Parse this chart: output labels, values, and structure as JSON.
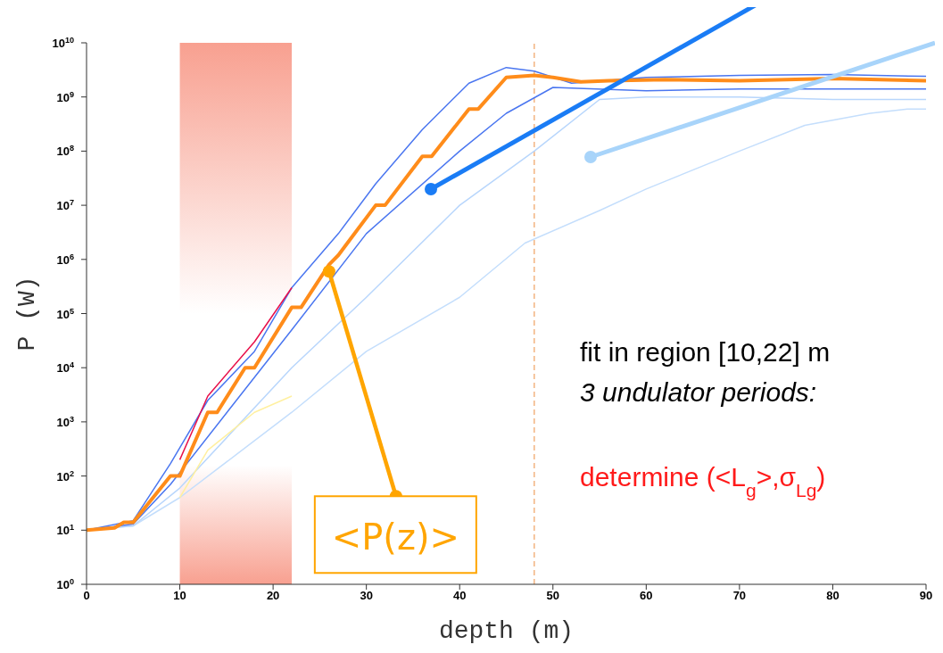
{
  "chart_data": {
    "type": "line",
    "xlabel": "depth (m)",
    "ylabel": "P (W)",
    "xlim": [
      0,
      90
    ],
    "xticks": [
      0,
      10,
      20,
      30,
      40,
      50,
      60,
      70,
      80,
      90
    ],
    "ylim": [
      1,
      10000000000
    ],
    "log": true,
    "yticks": [
      {
        "value": 1,
        "label": "10$^{0}$"
      },
      {
        "value": 10,
        "label": "10$^{1}$"
      },
      {
        "value": 100,
        "label": "10$^{2}$"
      },
      {
        "value": 1000,
        "label": "10$^{3}$"
      },
      {
        "value": 10000,
        "label": "10$^{4}$"
      },
      {
        "value": 100000,
        "label": "10$^{5}$"
      },
      {
        "value": 1000000,
        "label": "10$^{6}$"
      },
      {
        "value": 10000000,
        "label": "10$^{7}$"
      },
      {
        "value": 100000000,
        "label": "10$^{8}$"
      },
      {
        "value": 1000000000,
        "label": "10$^{9}$"
      },
      {
        "value": 10000000000,
        "label": "10$^{10}$"
      }
    ],
    "marker": "none",
    "line_style": "solid",
    "series": [
      {
        "color": "#c4defc",
        "x": [
          0,
          5,
          10,
          22,
          30,
          40,
          47,
          55,
          60,
          70,
          77,
          84,
          88,
          90
        ],
        "values": [
          10,
          12,
          40,
          1500,
          20000,
          200000,
          2000000,
          8000000,
          20000000,
          100000000,
          300000000,
          500000000,
          600000000,
          600000000
        ]
      },
      {
        "color": "#b8d6fc",
        "x": [
          0,
          5,
          10,
          22,
          30,
          40,
          48,
          55,
          60,
          70,
          80,
          90
        ],
        "values": [
          10,
          12,
          60,
          10000,
          200000,
          10000000,
          100000000,
          900000000,
          1000000000,
          1000000000,
          900000000,
          900000000
        ]
      },
      {
        "color": "#4a76f0",
        "x": [
          0,
          5,
          9,
          22,
          30,
          40,
          45,
          50,
          60,
          70,
          80,
          90
        ],
        "values": [
          10,
          13,
          70,
          50000,
          3000000,
          100000000,
          500000000,
          1500000000,
          1300000000,
          1400000000,
          1400000000,
          1400000000
        ]
      },
      {
        "color": "#4a76f0",
        "x": [
          0,
          5,
          9,
          13,
          18,
          22,
          27,
          31,
          36,
          41,
          45,
          48,
          52,
          60,
          70,
          80,
          90
        ],
        "values": [
          10,
          15,
          170,
          2500,
          20000,
          300000,
          3000000,
          25000000,
          250000000,
          1800000000,
          3500000000,
          3000000000,
          1800000000,
          2300000000,
          2500000000,
          2600000000,
          2400000000
        ]
      },
      {
        "color": "#fff0a0",
        "x": [
          10,
          13,
          18,
          22
        ],
        "values": [
          40,
          300,
          1500,
          3000
        ]
      },
      {
        "color": "#e8104a",
        "x": [
          10,
          13,
          18,
          22
        ],
        "values": [
          200,
          3000,
          30000,
          300000
        ]
      },
      {
        "color": "#ff8c1a",
        "x": [
          0,
          3,
          4,
          5,
          9,
          10,
          13,
          14,
          17,
          18,
          22,
          23,
          26,
          27,
          31,
          32,
          36,
          37,
          41,
          42,
          45,
          48,
          50,
          53,
          56,
          62,
          70,
          80,
          90
        ],
        "values": [
          10,
          11,
          14,
          14,
          100,
          100,
          1500,
          1500,
          10000,
          10000,
          130000,
          130000,
          800000,
          1200000,
          10000000,
          10000000,
          80000000,
          80000000,
          600000000,
          600000000,
          2300000000,
          2500000000,
          2300000000,
          1900000000,
          2000000000,
          2100000000,
          2000000000,
          2200000000,
          2000000000
        ]
      }
    ],
    "bands": [
      {
        "axis": "x",
        "from": 10,
        "to": 22,
        "color": "#f8a090"
      }
    ],
    "ref_lines": [
      {
        "axis": "x",
        "value": 48,
        "color": "#f0a060",
        "line_style": "dashed"
      }
    ],
    "annotations": [
      {
        "text": "<P(z)>",
        "x": 26,
        "y": 600000
      },
      "fit in region [10,22] m",
      "3 undulator periods:",
      "determine  (<L$_{g}$>,σ$_{Lg}$)"
    ]
  }
}
